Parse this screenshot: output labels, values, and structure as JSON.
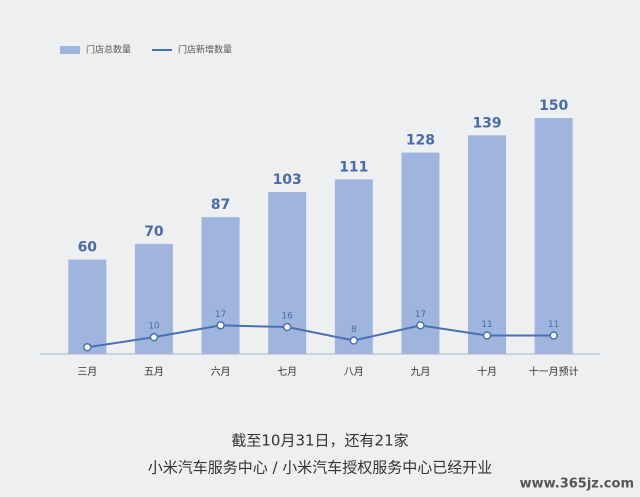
{
  "chart_data": {
    "type": "bar",
    "categories": [
      "三月",
      "五月",
      "六月",
      "七月",
      "八月",
      "九月",
      "十月",
      "十一月预计"
    ],
    "series": [
      {
        "name": "门店总数量",
        "type": "bar",
        "color": "#9fb5de",
        "values": [
          60,
          70,
          87,
          103,
          111,
          128,
          139,
          150
        ]
      },
      {
        "name": "门店新增数量",
        "type": "line",
        "axis": "y2",
        "color": "#4a6fb2",
        "values": [
          4,
          10,
          17,
          16,
          8,
          17,
          11,
          11
        ],
        "value_labels": [
          null,
          "10",
          "17",
          "16",
          "8",
          "17",
          "11",
          "11"
        ]
      }
    ],
    "ylim": [
      0,
      150
    ],
    "y2lim": [
      0,
      140
    ],
    "caption": [
      "截至10月31日，还有21家",
      "小米汽车服务中心 / 小米汽车授权服务中心已经开业"
    ],
    "watermark": "www.365jz.com"
  }
}
